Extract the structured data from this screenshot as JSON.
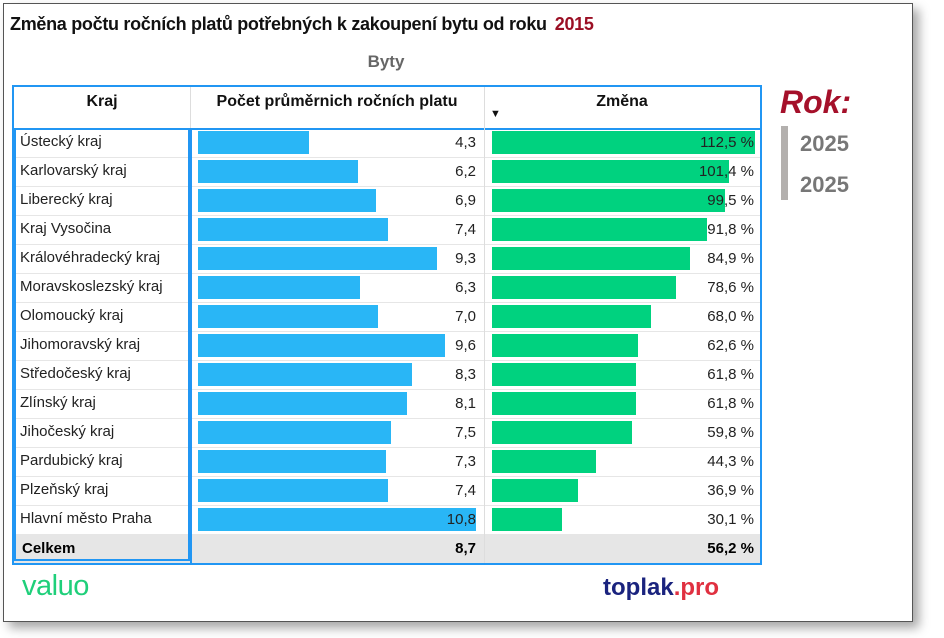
{
  "title": "Změna počtu ročních platů potřebných k zakoupení bytu od roku",
  "title_year": "2015",
  "subtitle": "Byty",
  "chart_data": {
    "type": "table",
    "columns": [
      "Kraj",
      "Počet průměrnich ročních platu",
      "Změna"
    ],
    "sort_indicator": "▼",
    "rows": [
      {
        "kraj": "Ústecký kraj",
        "pocet": 4.3,
        "pocet_label": "4,3",
        "zmena": 112.5,
        "zmena_label": "112,5 %"
      },
      {
        "kraj": "Karlovarský kraj",
        "pocet": 6.2,
        "pocet_label": "6,2",
        "zmena": 101.4,
        "zmena_label": "101,4 %"
      },
      {
        "kraj": "Liberecký kraj",
        "pocet": 6.9,
        "pocet_label": "6,9",
        "zmena": 99.5,
        "zmena_label": "99,5 %"
      },
      {
        "kraj": "Kraj Vysočina",
        "pocet": 7.4,
        "pocet_label": "7,4",
        "zmena": 91.8,
        "zmena_label": "91,8 %"
      },
      {
        "kraj": "Královéhradecký kraj",
        "pocet": 9.3,
        "pocet_label": "9,3",
        "zmena": 84.9,
        "zmena_label": "84,9 %"
      },
      {
        "kraj": "Moravskoslezský kraj",
        "pocet": 6.3,
        "pocet_label": "6,3",
        "zmena": 78.6,
        "zmena_label": "78,6 %"
      },
      {
        "kraj": "Olomoucký kraj",
        "pocet": 7.0,
        "pocet_label": "7,0",
        "zmena": 68.0,
        "zmena_label": "68,0 %"
      },
      {
        "kraj": "Jihomoravský kraj",
        "pocet": 9.6,
        "pocet_label": "9,6",
        "zmena": 62.6,
        "zmena_label": "62,6 %"
      },
      {
        "kraj": "Středočeský kraj",
        "pocet": 8.3,
        "pocet_label": "8,3",
        "zmena": 61.8,
        "zmena_label": "61,8 %"
      },
      {
        "kraj": "Zlínský kraj",
        "pocet": 8.1,
        "pocet_label": "8,1",
        "zmena": 61.8,
        "zmena_label": "61,8 %"
      },
      {
        "kraj": "Jihočeský kraj",
        "pocet": 7.5,
        "pocet_label": "7,5",
        "zmena": 59.8,
        "zmena_label": "59,8 %"
      },
      {
        "kraj": "Pardubický kraj",
        "pocet": 7.3,
        "pocet_label": "7,3",
        "zmena": 44.3,
        "zmena_label": "44,3 %"
      },
      {
        "kraj": "Plzeňský kraj",
        "pocet": 7.4,
        "pocet_label": "7,4",
        "zmena": 36.9,
        "zmena_label": "36,9 %"
      },
      {
        "kraj": "Hlavní město Praha",
        "pocet": 10.8,
        "pocet_label": "10,8",
        "zmena": 30.1,
        "zmena_label": "30,1 %"
      }
    ],
    "total": {
      "label": "Celkem",
      "pocet_label": "8,7",
      "zmena_label": "56,2 %"
    },
    "pocet_max": 10.8,
    "zmena_max": 112.5
  },
  "colors": {
    "pocet_bar": "#29b6f6",
    "zmena_bar": "#00d27f",
    "accent": "#a5102a"
  },
  "slicer": {
    "label": "Rok:",
    "values": [
      "2025",
      "2025"
    ]
  },
  "logos": {
    "valuo": "valuo",
    "toplak_main": "toplak",
    "toplak_suffix": ".pro"
  }
}
